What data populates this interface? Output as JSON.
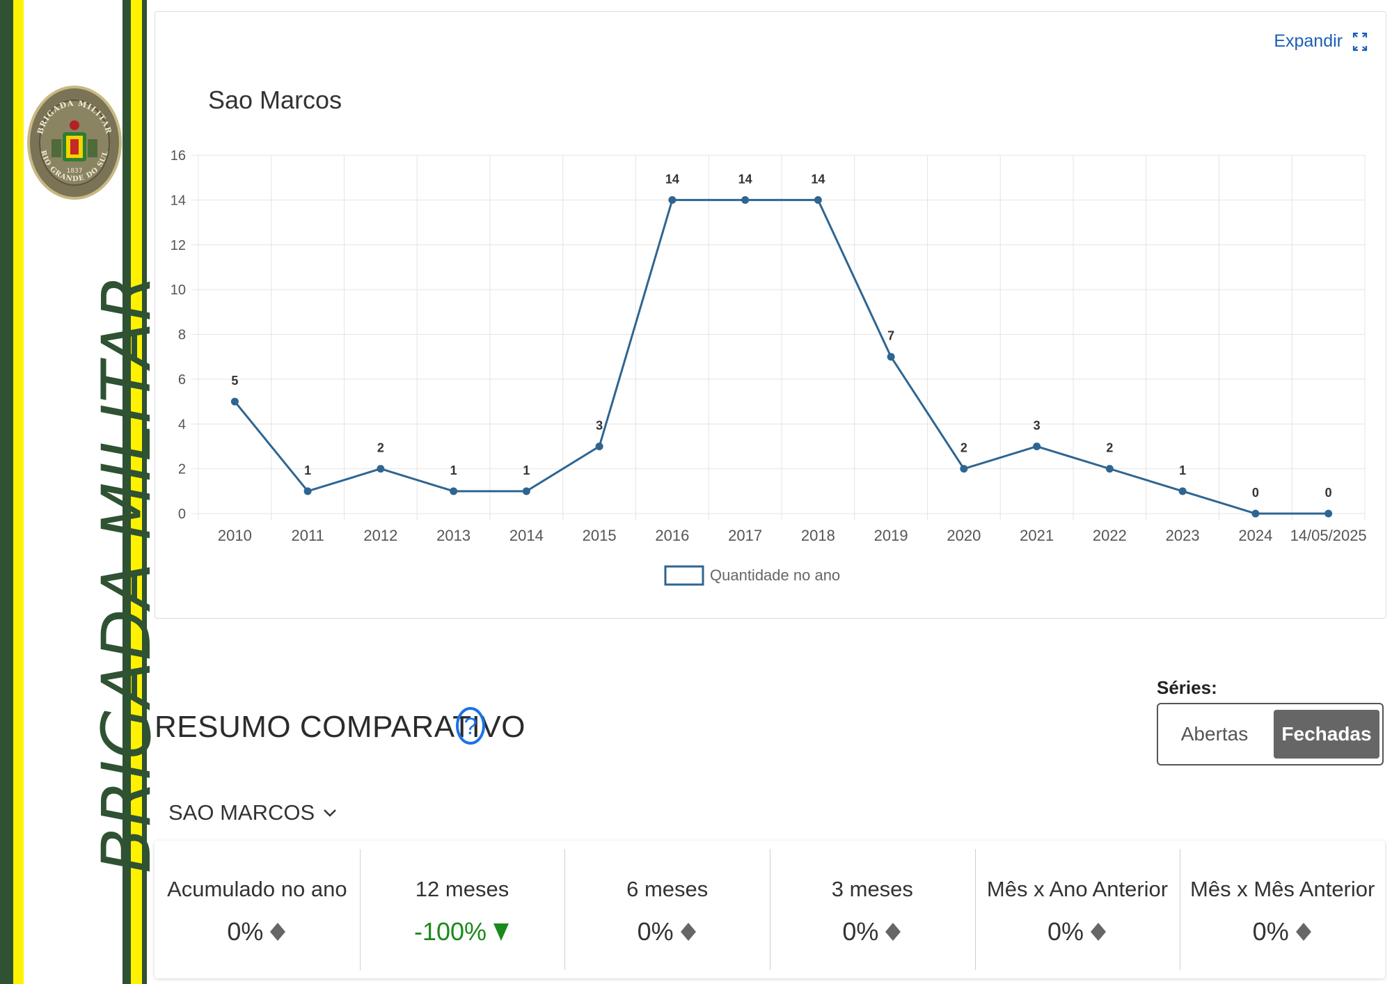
{
  "brand": {
    "vertical_text": "BRIGADA MILITAR",
    "seal_text_top": "BRIGADA MILITAR",
    "seal_text_bottom": "RIO GRANDE DO SUL",
    "seal_year": "1837"
  },
  "colors": {
    "stripe_green": "#2f5233",
    "stripe_yellow": "#fff200",
    "series_line": "#2e6591",
    "link_blue": "#1a5fb4",
    "negative_green": "#1a8a1a",
    "neutral_gray": "#666666"
  },
  "expand": {
    "label": "Expandir",
    "icon": "expand-icon"
  },
  "chart_data": {
    "type": "line",
    "title": "Sao Marcos",
    "categories": [
      "2010",
      "2011",
      "2012",
      "2013",
      "2014",
      "2015",
      "2016",
      "2017",
      "2018",
      "2019",
      "2020",
      "2021",
      "2022",
      "2023",
      "2024",
      "14/05/2025"
    ],
    "series": [
      {
        "name": "Quantidade no ano",
        "values": [
          5,
          1,
          2,
          1,
          1,
          3,
          14,
          14,
          14,
          7,
          2,
          3,
          2,
          1,
          0,
          0
        ]
      }
    ],
    "ylim": [
      0,
      16
    ],
    "yticks": [
      0,
      2,
      4,
      6,
      8,
      10,
      12,
      14,
      16
    ],
    "grid": true,
    "data_labels": true,
    "legend": "bottom-center",
    "xlabel": "",
    "ylabel": ""
  },
  "resumo": {
    "title": "RESUMO COMPARATIVO",
    "help_icon": "help-circle-icon",
    "series_label": "Séries:",
    "toggle": {
      "option_a": "Abertas",
      "option_b": "Fechadas",
      "selected": "Fechadas"
    },
    "region": {
      "selected": "SAO MARCOS",
      "icon": "chevron-down-icon"
    },
    "metrics": [
      {
        "label": "Acumulado no ano",
        "value": "0%",
        "trend": "neutral"
      },
      {
        "label": "12 meses",
        "value": "-100%",
        "trend": "down"
      },
      {
        "label": "6 meses",
        "value": "0%",
        "trend": "neutral"
      },
      {
        "label": "3 meses",
        "value": "0%",
        "trend": "neutral"
      },
      {
        "label": "Mês x Ano Anterior",
        "value": "0%",
        "trend": "neutral"
      },
      {
        "label": "Mês x Mês Anterior",
        "value": "0%",
        "trend": "neutral"
      }
    ]
  }
}
